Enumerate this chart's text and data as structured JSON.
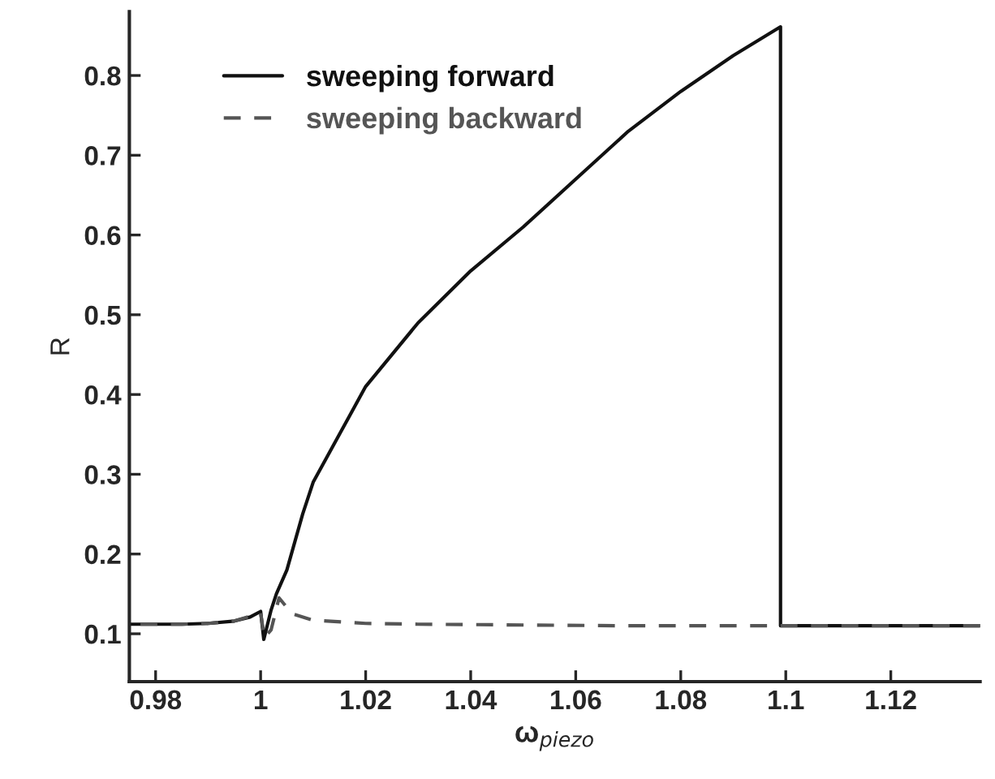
{
  "chart_data": {
    "type": "line",
    "xlabel": "ω$_{piezo}$",
    "ylabel": "R",
    "xlim": [
      0.975,
      1.137
    ],
    "ylim": [
      0.04,
      0.88
    ],
    "xticks": [
      0.98,
      1,
      1.02,
      1.04,
      1.06,
      1.08,
      1.1,
      1.12
    ],
    "yticks": [
      0.1,
      0.2,
      0.3,
      0.4,
      0.5,
      0.6,
      0.7,
      0.8
    ],
    "grid": false,
    "legend": "top left",
    "series": [
      {
        "name": "sweeping forward",
        "color": "#111111",
        "line_style": "solid",
        "x": [
          0.975,
          0.985,
          0.99,
          0.995,
          0.998,
          1.0,
          1.0006,
          1.002,
          1.003,
          1.005,
          1.008,
          1.01,
          1.015,
          1.02,
          1.03,
          1.04,
          1.05,
          1.06,
          1.07,
          1.08,
          1.09,
          1.099,
          1.099,
          1.137
        ],
        "values": [
          0.112,
          0.112,
          0.113,
          0.116,
          0.121,
          0.128,
          0.093,
          0.13,
          0.15,
          0.18,
          0.25,
          0.29,
          0.35,
          0.41,
          0.49,
          0.555,
          0.61,
          0.67,
          0.73,
          0.78,
          0.825,
          0.861,
          0.11,
          0.11
        ]
      },
      {
        "name": "sweeping backward",
        "color": "#555555",
        "line_style": "dashed",
        "x": [
          1.137,
          1.099,
          1.07,
          1.05,
          1.03,
          1.02,
          1.01,
          1.006,
          1.0035,
          1.002,
          1.0007,
          1.0,
          0.995,
          0.99,
          0.985,
          0.975
        ],
        "values": [
          0.11,
          0.11,
          0.11,
          0.111,
          0.112,
          0.113,
          0.117,
          0.125,
          0.145,
          0.105,
          0.095,
          0.126,
          0.116,
          0.113,
          0.112,
          0.112
        ]
      }
    ]
  }
}
